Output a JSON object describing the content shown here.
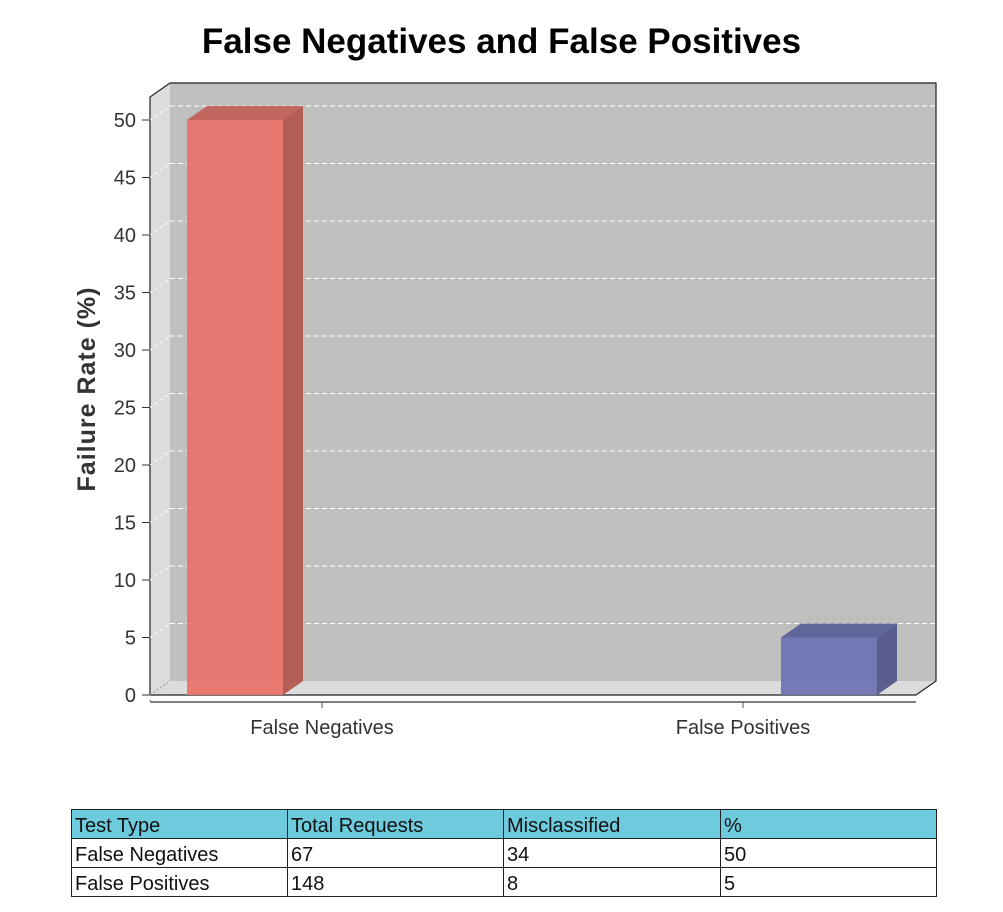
{
  "chart_data": {
    "type": "bar",
    "title": "False Negatives and False Positives",
    "xlabel": "",
    "ylabel": "Failure Rate (%)",
    "categories": [
      "False Negatives",
      "False Positives"
    ],
    "values": [
      50,
      5
    ],
    "colors": [
      "#e8746c",
      "#6f74b4"
    ],
    "ylim": [
      0,
      52
    ],
    "yticks": [
      0,
      5,
      10,
      15,
      20,
      25,
      30,
      35,
      40,
      45,
      50
    ],
    "grid": true,
    "style": "3d"
  },
  "table": {
    "headers": [
      "Test Type",
      "Total Requests",
      "Misclassified",
      "%"
    ],
    "rows": [
      [
        "False Negatives",
        "67",
        "34",
        "50"
      ],
      [
        "False Positives",
        "148",
        "8",
        "5"
      ]
    ],
    "header_color": "#6ecbdd"
  }
}
